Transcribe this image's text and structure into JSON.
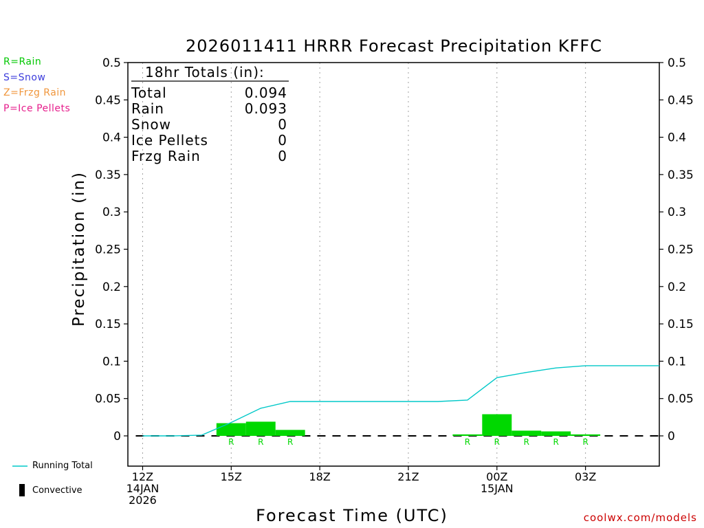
{
  "chart_data": {
    "type": "bar",
    "title": "2026011411 HRRR Forecast Precipitation KFFC",
    "xlabel": "Forecast Time (UTC)",
    "ylabel": "Precipitation (in)",
    "ylim": [
      -0.04,
      0.5
    ],
    "xlim_hours": [
      11.5,
      29.5
    ],
    "y_ticks": [
      0,
      0.05,
      0.1,
      0.15,
      0.2,
      0.25,
      0.3,
      0.35,
      0.4,
      0.45,
      0.5
    ],
    "y_tick_labels": [
      "0",
      "0.05",
      "0.1",
      "0.15",
      "0.2",
      "0.25",
      "0.3",
      "0.35",
      "0.4",
      "0.45",
      "0.5"
    ],
    "x_ticks": [
      {
        "hour": 12,
        "lines": [
          "12Z",
          "14JAN",
          "2026"
        ]
      },
      {
        "hour": 15,
        "lines": [
          "15Z"
        ]
      },
      {
        "hour": 18,
        "lines": [
          "18Z"
        ]
      },
      {
        "hour": 21,
        "lines": [
          "21Z"
        ]
      },
      {
        "hour": 24,
        "lines": [
          "00Z",
          "15JAN"
        ]
      },
      {
        "hour": 27,
        "lines": [
          "03Z"
        ]
      }
    ],
    "grid": "vertical-dotted",
    "bars": [
      {
        "hour": 15,
        "value": 0.017,
        "type": "R"
      },
      {
        "hour": 16,
        "value": 0.019,
        "type": "R"
      },
      {
        "hour": 17,
        "value": 0.008,
        "type": "R"
      },
      {
        "hour": 23,
        "value": 0.002,
        "type": "R"
      },
      {
        "hour": 24,
        "value": 0.029,
        "type": "R"
      },
      {
        "hour": 25,
        "value": 0.007,
        "type": "R"
      },
      {
        "hour": 26,
        "value": 0.006,
        "type": "R"
      },
      {
        "hour": 27,
        "value": 0.002,
        "type": "R"
      }
    ],
    "running_total": {
      "name": "Running Total",
      "points": [
        [
          12,
          0
        ],
        [
          13,
          0
        ],
        [
          14,
          0.001
        ],
        [
          15,
          0.018
        ],
        [
          16,
          0.037
        ],
        [
          17,
          0.046
        ],
        [
          18,
          0.046
        ],
        [
          19,
          0.046
        ],
        [
          20,
          0.046
        ],
        [
          21,
          0.046
        ],
        [
          22,
          0.046
        ],
        [
          23,
          0.048
        ],
        [
          24,
          0.078
        ],
        [
          25,
          0.085
        ],
        [
          26,
          0.091
        ],
        [
          27,
          0.094
        ],
        [
          28,
          0.094
        ],
        [
          29.5,
          0.094
        ]
      ]
    },
    "totals_box": {
      "heading": "18hr Totals (in):",
      "rows": [
        {
          "label": "Total",
          "value": "0.094"
        },
        {
          "label": "Rain",
          "value": "0.093"
        },
        {
          "label": "Snow",
          "value": "0"
        },
        {
          "label": "Ice Pellets",
          "value": "0"
        },
        {
          "label": "Frzg Rain",
          "value": "0"
        }
      ]
    },
    "colors": {
      "rain": "#00d800",
      "running_total": "#00c8c8",
      "axis": "#000000",
      "grid": "#a0a0a0"
    }
  },
  "type_legend": [
    {
      "text": "R=Rain",
      "color": "#00c800"
    },
    {
      "text": "S=Snow",
      "color": "#3c3cdc"
    },
    {
      "text": "Z=Frzg Rain",
      "color": "#f0963c"
    },
    {
      "text": "P=Ice Pellets",
      "color": "#e61e8c"
    }
  ],
  "line_legend": {
    "running_total": "Running Total",
    "convective": "Convective"
  },
  "credit": "coolwx.com/models"
}
